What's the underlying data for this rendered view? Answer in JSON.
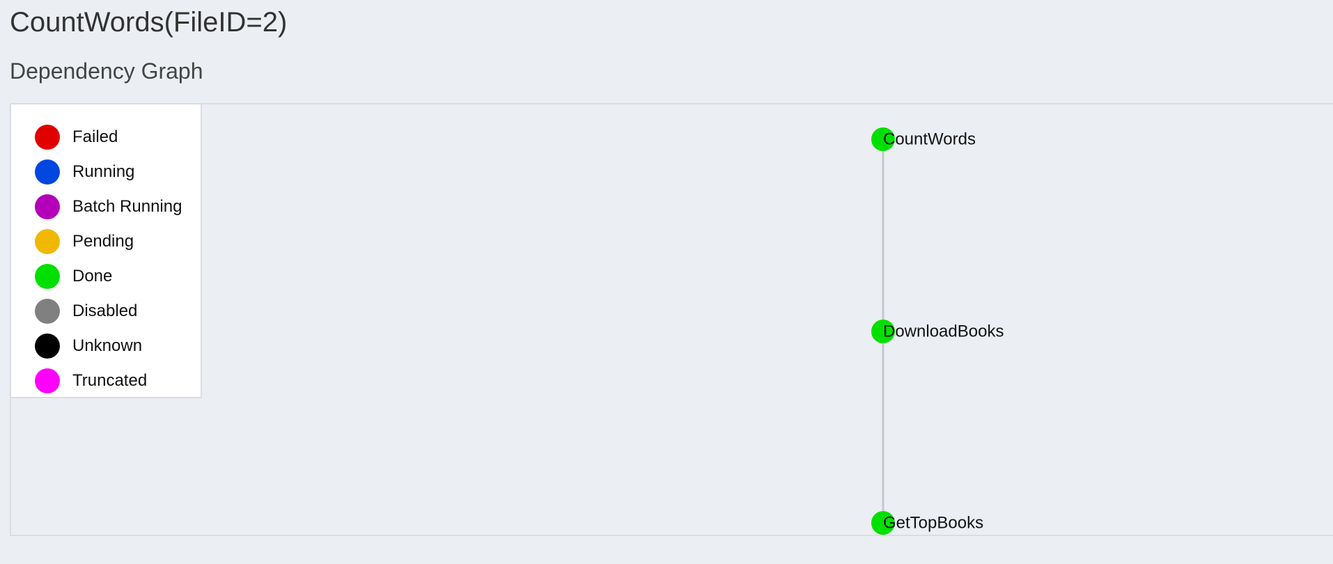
{
  "header": {
    "title": "CountWords(FileID=2)",
    "subtitle": "Dependency Graph"
  },
  "legend": {
    "items": [
      {
        "label": "Failed",
        "color": "#e00000"
      },
      {
        "label": "Running",
        "color": "#0047e0"
      },
      {
        "label": "Batch Running",
        "color": "#b400b8"
      },
      {
        "label": "Pending",
        "color": "#f0b800"
      },
      {
        "label": "Done",
        "color": "#00e000"
      },
      {
        "label": "Disabled",
        "color": "#808080"
      },
      {
        "label": "Unknown",
        "color": "#000000"
      },
      {
        "label": "Truncated",
        "color": "#ff00ff"
      }
    ]
  },
  "graph": {
    "nodes": [
      {
        "id": "CountWords",
        "label": "CountWords",
        "status": "Done",
        "color": "#00e000"
      },
      {
        "id": "DownloadBooks",
        "label": "DownloadBooks",
        "status": "Done",
        "color": "#00e000"
      },
      {
        "id": "GetTopBooks",
        "label": "GetTopBooks",
        "status": "Done",
        "color": "#00e000"
      }
    ],
    "edges": [
      {
        "from": "CountWords",
        "to": "DownloadBooks"
      },
      {
        "from": "DownloadBooks",
        "to": "GetTopBooks"
      }
    ],
    "edge_color": "#c3c6cb"
  }
}
